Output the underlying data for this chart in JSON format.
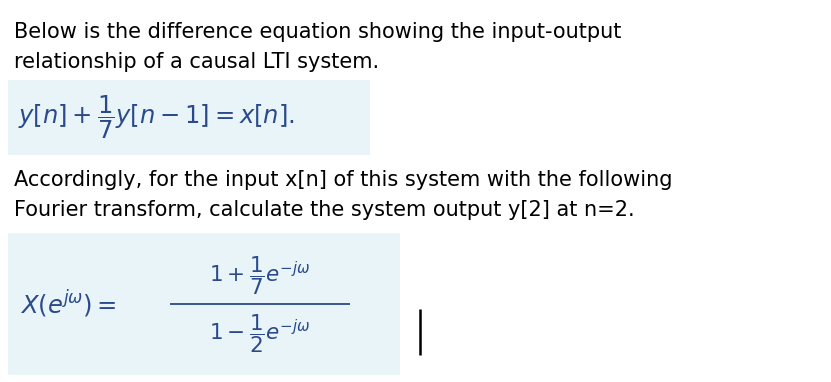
{
  "bg_color": "#ffffff",
  "box_color": "#e8f4f8",
  "text_color": "#000000",
  "math_color": "#2b4a8b",
  "fig_width": 8.31,
  "fig_height": 3.82,
  "dpi": 100,
  "line1": "Below is the difference equation showing the input-output",
  "line2": "relationship of a causal LTI system.",
  "line3": "Accordingly, for the input x[n] of this system with the following",
  "line4": "Fourier transform, calculate the system output y[2] at n=2.",
  "fontsize_body": 15.0,
  "fontsize_math": 15.5
}
